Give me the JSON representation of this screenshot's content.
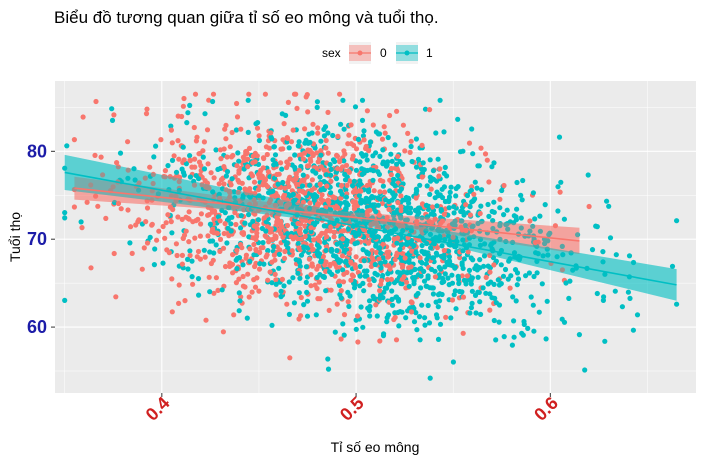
{
  "chart_data": {
    "type": "scatter",
    "title": "Biểu đồ tương quan giữa tỉ số eo mông và tuổi thọ.",
    "xlabel": "Tỉ số eo mông",
    "ylabel": "Tuổi thọ",
    "xlim": [
      0.345,
      0.675
    ],
    "ylim": [
      52.5,
      88
    ],
    "x_ticks": [
      {
        "value": 0.4,
        "label": "0.4"
      },
      {
        "value": 0.5,
        "label": "0.5"
      },
      {
        "value": 0.6,
        "label": "0.6"
      }
    ],
    "y_ticks": [
      {
        "value": 60,
        "label": "60"
      },
      {
        "value": 70,
        "label": "70"
      },
      {
        "value": 80,
        "label": "80"
      }
    ],
    "grid": true,
    "legend": {
      "title": "sex",
      "position": "top",
      "entries": [
        {
          "label": "0",
          "color": "#F8766D"
        },
        {
          "label": "1",
          "color": "#00BFC4"
        }
      ]
    },
    "series": [
      {
        "name": "0",
        "color": "#F8766D",
        "point_count": 1200,
        "x_mean": 0.475,
        "x_sd": 0.045,
        "x_range": [
          0.355,
          0.62
        ],
        "y_range": [
          56.5,
          86.5
        ],
        "trend": {
          "x": [
            0.355,
            0.615
          ],
          "y": [
            75.8,
            69.8
          ]
        },
        "ci_band": {
          "x": [
            0.355,
            0.49,
            0.615
          ],
          "lower": [
            74.5,
            72.5,
            68.3
          ],
          "upper": [
            77.1,
            73.2,
            71.3
          ]
        }
      },
      {
        "name": "1",
        "color": "#00BFC4",
        "point_count": 1500,
        "x_mean": 0.51,
        "x_sd": 0.05,
        "x_range": [
          0.35,
          0.665
        ],
        "y_range": [
          54.2,
          85.8
        ],
        "trend": {
          "x": [
            0.35,
            0.665
          ],
          "y": [
            77.6,
            64.8
          ]
        },
        "ci_band": {
          "x": [
            0.35,
            0.51,
            0.665
          ],
          "lower": [
            75.6,
            71.3,
            63.0
          ],
          "upper": [
            79.6,
            72.3,
            66.6
          ]
        }
      }
    ]
  }
}
